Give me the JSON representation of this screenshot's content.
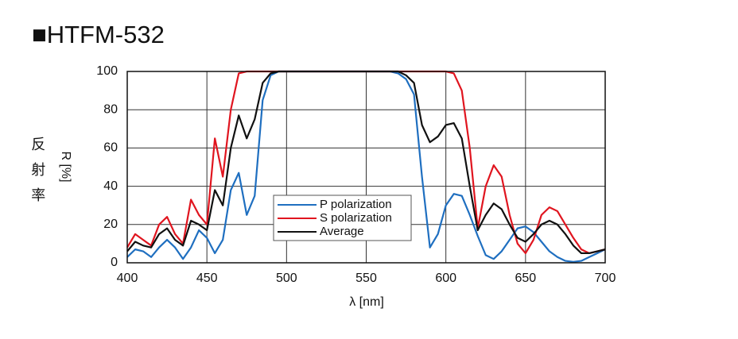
{
  "chart_data": {
    "type": "line",
    "title": "■HTFM-532",
    "y_label_jp": "反射率",
    "y_label": "R [%]",
    "x_label": "λ [nm]",
    "x": [
      400,
      405,
      410,
      415,
      420,
      425,
      430,
      435,
      440,
      445,
      450,
      455,
      460,
      465,
      470,
      475,
      480,
      485,
      490,
      495,
      500,
      505,
      510,
      515,
      520,
      525,
      530,
      535,
      540,
      545,
      550,
      555,
      560,
      565,
      570,
      575,
      580,
      585,
      590,
      595,
      600,
      605,
      610,
      615,
      620,
      625,
      630,
      635,
      640,
      645,
      650,
      655,
      660,
      665,
      670,
      675,
      680,
      685,
      690,
      695,
      700
    ],
    "series": [
      {
        "name": "P polarization",
        "color": "#1f6fc0",
        "values": [
          3,
          7,
          6,
          3,
          8,
          12,
          8,
          2,
          8,
          17,
          13,
          5,
          12,
          38,
          47,
          25,
          35,
          85,
          98,
          100,
          100,
          100,
          100,
          100,
          100,
          100,
          100,
          100,
          100,
          100,
          100,
          100,
          100,
          100,
          99,
          96,
          88,
          45,
          8,
          15,
          30,
          36,
          35,
          25,
          14,
          4,
          2,
          6,
          12,
          18,
          19,
          16,
          11,
          6,
          3,
          1,
          0.5,
          1,
          3,
          5,
          7
        ]
      },
      {
        "name": "S polarization",
        "color": "#e0151f",
        "values": [
          8,
          15,
          12,
          9,
          20,
          24,
          15,
          10,
          33,
          25,
          20,
          65,
          45,
          80,
          99,
          100,
          100,
          100,
          100,
          100,
          100,
          100,
          100,
          100,
          100,
          100,
          100,
          100,
          100,
          100,
          100,
          100,
          100,
          100,
          100,
          100,
          100,
          100,
          100,
          100,
          100,
          99,
          90,
          60,
          18,
          40,
          51,
          45,
          25,
          10,
          5,
          12,
          25,
          29,
          27,
          20,
          13,
          7,
          5,
          6,
          7
        ]
      },
      {
        "name": "Average",
        "color": "#111111",
        "values": [
          6,
          11,
          9,
          8,
          15,
          18,
          12,
          9,
          22,
          20,
          17,
          38,
          30,
          60,
          77,
          65,
          75,
          94,
          99,
          100,
          100,
          100,
          100,
          100,
          100,
          100,
          100,
          100,
          100,
          100,
          100,
          100,
          100,
          100,
          100,
          98,
          94,
          72,
          63,
          66,
          72,
          73,
          65,
          40,
          17,
          25,
          31,
          28,
          20,
          13,
          11,
          15,
          20,
          22,
          20,
          15,
          9,
          5,
          5,
          6,
          7
        ]
      }
    ],
    "xlim": [
      400,
      700
    ],
    "xticks": [
      400,
      450,
      500,
      550,
      600,
      650,
      700
    ],
    "ylim": [
      0,
      100
    ],
    "yticks": [
      0,
      20,
      40,
      60,
      80,
      100
    ],
    "grid": true,
    "legend": "center"
  }
}
